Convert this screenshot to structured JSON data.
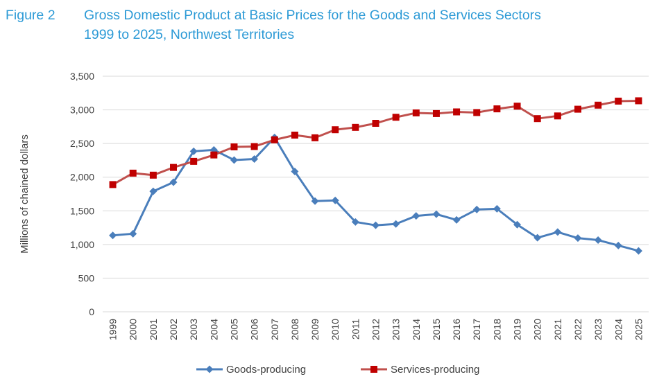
{
  "header": {
    "figure_label": "Figure 2",
    "title_line1": "Gross Domestic Product at Basic Prices for the Goods and Services Sectors",
    "title_line2": "1999 to 2025, Northwest Territories"
  },
  "chart_data": {
    "type": "line",
    "ylabel": "Millions of chained dollars",
    "ylim": [
      0,
      3500
    ],
    "yticks": [
      0,
      500,
      1000,
      1500,
      2000,
      2500,
      3000,
      3500
    ],
    "ytick_labels": [
      "0",
      "500",
      "1,000",
      "1,500",
      "2,000",
      "2,500",
      "3,000",
      "3,500"
    ],
    "grid": true,
    "legend_position": "bottom",
    "x": [
      "1999",
      "2000",
      "2001",
      "2002",
      "2003",
      "2004",
      "2005",
      "2006",
      "2007",
      "2008",
      "2009",
      "2010",
      "2011",
      "2012",
      "2013",
      "2014",
      "2015",
      "2016",
      "2017",
      "2018",
      "2019",
      "2020",
      "2021",
      "2022",
      "2023",
      "2024",
      "2025"
    ],
    "series": [
      {
        "name": "Goods-producing",
        "color": "#4a7ebb",
        "marker": "diamond",
        "values": [
          1135,
          1160,
          1790,
          1925,
          2385,
          2405,
          2255,
          2270,
          2590,
          2085,
          1645,
          1655,
          1335,
          1285,
          1305,
          1425,
          1450,
          1365,
          1520,
          1530,
          1295,
          1100,
          1185,
          1095,
          1065,
          985,
          905
        ]
      },
      {
        "name": "Services-producing",
        "color": "#c0504d",
        "marker_color": "#c00000",
        "marker": "square",
        "values": [
          1890,
          2060,
          2030,
          2145,
          2235,
          2330,
          2450,
          2455,
          2555,
          2625,
          2585,
          2705,
          2740,
          2800,
          2890,
          2955,
          2945,
          2970,
          2960,
          3015,
          3055,
          2870,
          2910,
          3010,
          3070,
          3130,
          3135
        ]
      }
    ]
  }
}
